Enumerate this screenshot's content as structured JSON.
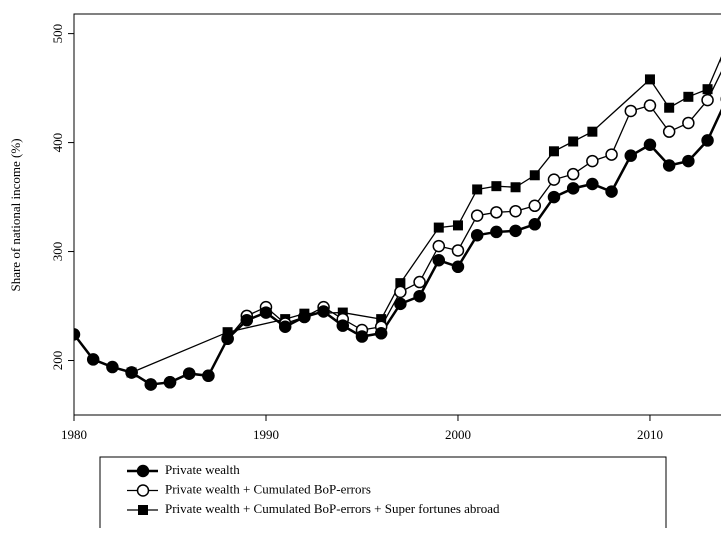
{
  "chart_data": {
    "type": "line",
    "ylabel": "Share of national income (%)",
    "xlim": [
      1980,
      2013.7
    ],
    "ylim": [
      150,
      518
    ],
    "xticks": [
      1980,
      1990,
      2000,
      2010
    ],
    "yticks": [
      200,
      300,
      400,
      500
    ],
    "series": [
      {
        "name": "Private wealth",
        "color": "#000000",
        "marker": "filled-circle",
        "x": [
          1980,
          1981,
          1982,
          1983,
          1984,
          1985,
          1986,
          1987,
          1988,
          1989,
          1990,
          1991,
          1992,
          1993,
          1994,
          1995,
          1996,
          1997,
          1998,
          1999,
          2000,
          2001,
          2002,
          2003,
          2004,
          2005,
          2006,
          2007,
          2008,
          2009,
          2010,
          2011,
          2012,
          2013,
          2014
        ],
        "values": [
          224,
          201,
          194,
          189,
          178,
          180,
          188,
          186,
          220,
          237,
          244,
          231,
          240,
          245,
          232,
          222,
          225,
          252,
          259,
          292,
          286,
          315,
          318,
          319,
          325,
          350,
          358,
          362,
          355,
          388,
          398,
          379,
          383,
          402,
          440
        ]
      },
      {
        "name": "Private wealth + Cumulated BoP-errors",
        "color": "#000000",
        "marker": "open-circle",
        "x": [
          1983,
          1984,
          1985,
          1986,
          1987,
          1988,
          1989,
          1990,
          1991,
          1992,
          1993,
          1994,
          1995,
          1996,
          1997,
          1998,
          1999,
          2000,
          2001,
          2002,
          2003,
          2004,
          2005,
          2006,
          2007,
          2008,
          2009,
          2010,
          2011,
          2012,
          2013,
          2014
        ],
        "values": [
          189,
          178,
          180,
          188,
          186,
          220,
          241,
          249,
          234,
          240,
          249,
          238,
          228,
          231,
          263,
          272,
          305,
          301,
          333,
          336,
          337,
          342,
          366,
          371,
          383,
          389,
          429,
          434,
          410,
          418,
          439,
          475
        ]
      },
      {
        "name": "Private wealth + Cumulated BoP-errors + Super fortunes abroad",
        "color": "#000000",
        "marker": "square",
        "x": [
          1983,
          1988,
          1991,
          1992,
          1994,
          1996,
          1997,
          1999,
          2000,
          2001,
          2002,
          2003,
          2004,
          2005,
          2006,
          2007,
          2010,
          2011,
          2012,
          2013,
          2014
        ],
        "values": [
          189,
          226,
          238,
          243,
          244,
          238,
          271,
          322,
          324,
          357,
          360,
          359,
          370,
          392,
          401,
          410,
          458,
          432,
          442,
          449,
          490
        ]
      }
    ]
  }
}
